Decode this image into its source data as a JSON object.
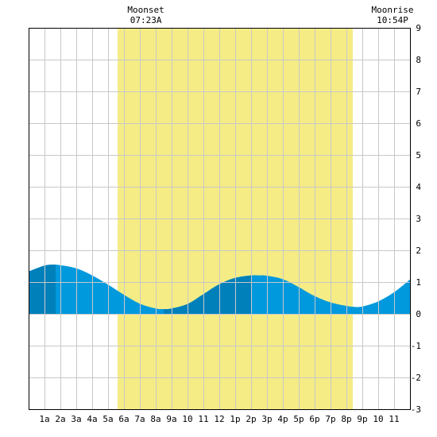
{
  "chart_data": {
    "type": "area",
    "x_ticks": [
      "1a",
      "2a",
      "3a",
      "4a",
      "5a",
      "6a",
      "7a",
      "8a",
      "9a",
      "10",
      "11",
      "12",
      "1p",
      "2p",
      "3p",
      "4p",
      "5p",
      "6p",
      "7p",
      "8p",
      "9p",
      "10",
      "11"
    ],
    "y_ticks": [
      "9",
      "8",
      "7",
      "6",
      "5",
      "4",
      "3",
      "2",
      "1",
      "0",
      "-1",
      "-2",
      "-3"
    ],
    "xlim": [
      0,
      24
    ],
    "ylim": [
      -3,
      9
    ],
    "daylight": [
      5.6,
      20.4
    ],
    "moon_events": [
      {
        "label": "Moonset",
        "time": "07:23A",
        "hour": 7.38
      },
      {
        "label": "Moonrise",
        "time": "10:54P",
        "hour": 22.9
      }
    ],
    "series": [
      {
        "x": [
          0,
          0.5,
          1,
          1.5,
          2,
          3,
          4,
          5,
          6,
          7,
          8,
          8.5,
          9,
          10,
          11,
          12,
          13,
          14,
          14.5,
          15,
          16,
          17,
          18,
          19,
          20,
          20.5,
          21,
          22,
          23,
          24
        ],
        "y": [
          1.33,
          1.43,
          1.52,
          1.55,
          1.53,
          1.43,
          1.21,
          0.92,
          0.6,
          0.32,
          0.17,
          0.15,
          0.17,
          0.31,
          0.62,
          0.93,
          1.13,
          1.21,
          1.21,
          1.2,
          1.09,
          0.84,
          0.56,
          0.36,
          0.25,
          0.22,
          0.23,
          0.39,
          0.68,
          1.08
        ]
      }
    ],
    "tide_marks": [
      {
        "from": 0,
        "to": 1.7
      },
      {
        "from": 8.5,
        "to": 14
      }
    ],
    "colors": {
      "water": "#0099dd",
      "water_dark": "#0080bb",
      "day": "#f5ec86",
      "grid": "#c8c8c8"
    },
    "grid": true
  }
}
